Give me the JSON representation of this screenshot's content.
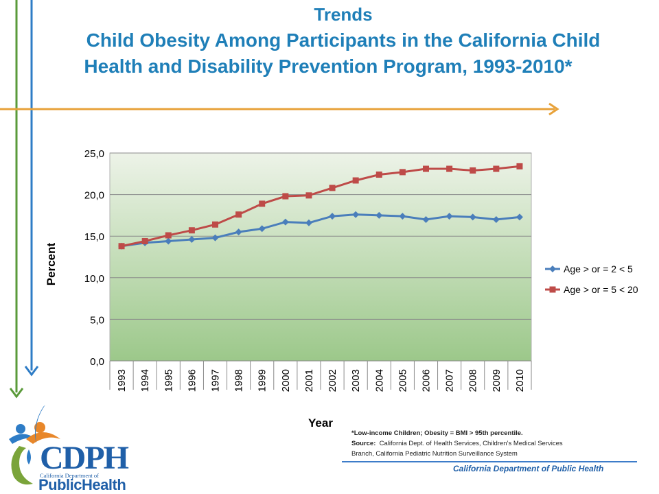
{
  "title": {
    "line1": "Trends",
    "line2": "Child Obesity Among Participants in the California Child",
    "line3": "Health and Disability Prevention Program, 1993-2010*"
  },
  "chart_data": {
    "type": "line",
    "x": [
      "1993",
      "1994",
      "1995",
      "1996",
      "1997",
      "1998",
      "1999",
      "2000",
      "2001",
      "2002",
      "2003",
      "2004",
      "2005",
      "2006",
      "2007",
      "2008",
      "2009",
      "2010"
    ],
    "series": [
      {
        "name": "Age > or = 2 < 5",
        "color": "#4a7ebb",
        "marker": "diamond",
        "values": [
          13.8,
          14.2,
          14.4,
          14.6,
          14.8,
          15.5,
          15.9,
          16.7,
          16.6,
          17.4,
          17.6,
          17.5,
          17.4,
          17.0,
          17.4,
          17.3,
          17.0,
          17.3
        ]
      },
      {
        "name": "Age > or = 5 < 20",
        "color": "#be4b48",
        "marker": "square",
        "values": [
          13.8,
          14.4,
          15.1,
          15.7,
          16.4,
          17.6,
          18.9,
          19.8,
          19.9,
          20.8,
          21.7,
          22.4,
          22.7,
          23.1,
          23.1,
          22.9,
          23.1,
          23.4
        ]
      }
    ],
    "ylim": [
      0,
      25
    ],
    "yticks": [
      "0,0",
      "5,0",
      "10,0",
      "15,0",
      "20,0",
      "25,0"
    ],
    "ytick_values": [
      0,
      5,
      10,
      15,
      20,
      25
    ],
    "xlabel": "Year",
    "ylabel": "Percent",
    "grid": true,
    "legend_position": "right",
    "background_gradient": [
      "#edf3e8",
      "#9cc88a"
    ]
  },
  "footnote": {
    "line1": "*Low-income Children; Obesity = BMI > 95th percentile.",
    "source_label": "Source:",
    "source_text": "California Dept. of Health Services, Children’s Medical Services",
    "line3": "Branch, California Pediatric Nutrition Surveillance System"
  },
  "footer_org": "California Department of Public Health",
  "logo": {
    "abbr": "CDPH",
    "subtitle": "California Department of",
    "main_a": "Public",
    "main_b": "Health"
  },
  "colors": {
    "title": "#1f7fb8",
    "green_arrow": "#5a9a3a",
    "blue_arrow": "#2e7cc6",
    "orange_arrow": "#e8a23a"
  }
}
